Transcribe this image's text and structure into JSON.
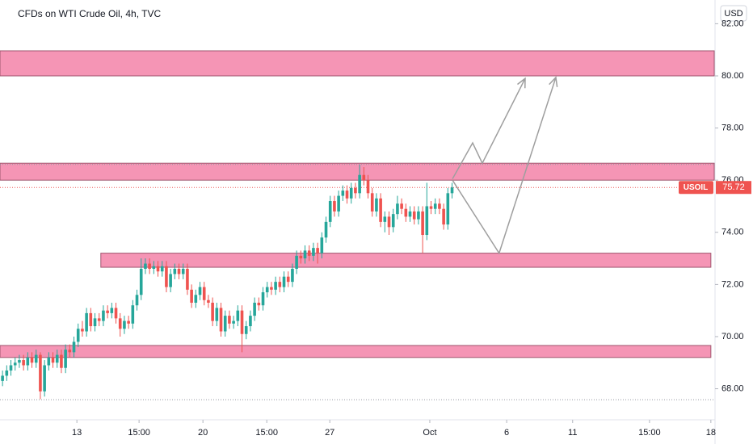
{
  "chart_data": {
    "type": "candlestick",
    "title": "CFDs on WTI Crude Oil, 4h, TVC",
    "currency": "USD",
    "up_color": "#26a69a",
    "down_color": "#ef5350",
    "zone_color": "#f48fb1",
    "xlim": [
      -0.6,
      169.4
    ],
    "ylim": [
      66.81,
      82.91
    ],
    "xticks": [
      {
        "value": 17.7,
        "label": "13"
      },
      {
        "value": 32.5,
        "label": "15:00"
      },
      {
        "value": 47.7,
        "label": "20"
      },
      {
        "value": 62.9,
        "label": "15:00"
      },
      {
        "value": 77.9,
        "label": "27"
      },
      {
        "value": 101.7,
        "label": "Oct"
      },
      {
        "value": 120,
        "label": "6"
      },
      {
        "value": 135.7,
        "label": "11"
      },
      {
        "value": 154,
        "label": "15:00"
      },
      {
        "value": 168.6,
        "label": "18"
      }
    ],
    "yticks": [
      {
        "value": 68,
        "label": "68.00"
      },
      {
        "value": 70,
        "label": "70.00"
      },
      {
        "value": 72,
        "label": "72.00"
      },
      {
        "value": 74,
        "label": "74.00"
      },
      {
        "value": 76,
        "label": "76.00"
      },
      {
        "value": 78,
        "label": "78.00"
      },
      {
        "value": 80,
        "label": "80.00"
      },
      {
        "value": 82,
        "label": "82.00"
      }
    ],
    "open": [
      68.3,
      68.5,
      68.7,
      68.9,
      69.0,
      69.1,
      68.9,
      69.2,
      69.0,
      69.3,
      67.9,
      68.9,
      69.2,
      69.0,
      69.3,
      68.8,
      69.5,
      69.4,
      69.8,
      70.3,
      70.2,
      70.9,
      70.4,
      70.7,
      70.6,
      71.0,
      70.9,
      71.1,
      70.7,
      70.3,
      70.6,
      70.5,
      71.2,
      71.6,
      72.6,
      72.8,
      72.6,
      72.7,
      72.5,
      72.7,
      71.9,
      72.4,
      72.6,
      72.4,
      72.6,
      71.8,
      71.3,
      71.6,
      71.9,
      71.4,
      71.3,
      70.6,
      71.1,
      70.2,
      70.8,
      70.5,
      70.6,
      71.0,
      70.1,
      70.4,
      70.8,
      71.3,
      71.2,
      71.7,
      71.9,
      71.8,
      72.1,
      71.9,
      72.3,
      72.1,
      72.6,
      73.1,
      73.0,
      73.3,
      73.1,
      73.4,
      73.2,
      73.8,
      74.4,
      75.2,
      74.8,
      75.4,
      75.6,
      75.3,
      75.7,
      75.5,
      76.2,
      76.0,
      75.5,
      74.8,
      75.3,
      74.4,
      74.6,
      74.2,
      74.7,
      75.1,
      74.9,
      74.6,
      74.8,
      74.5,
      74.8,
      73.9,
      75.0,
      74.9,
      75.1,
      74.9,
      74.3,
      75.5
    ],
    "high": [
      68.7,
      68.9,
      69.1,
      69.2,
      69.3,
      69.3,
      69.4,
      69.4,
      69.5,
      69.4,
      69.1,
      69.4,
      69.4,
      69.5,
      69.5,
      69.7,
      69.7,
      70.0,
      70.5,
      70.6,
      71.1,
      71.1,
      70.9,
      70.9,
      71.2,
      71.2,
      71.3,
      71.3,
      70.9,
      70.8,
      70.8,
      71.4,
      71.8,
      73.0,
      73.0,
      73.0,
      72.9,
      72.9,
      72.9,
      72.9,
      72.6,
      72.8,
      72.8,
      72.8,
      72.8,
      72.0,
      71.8,
      72.1,
      72.1,
      71.6,
      71.5,
      71.3,
      71.3,
      71.0,
      71.0,
      70.8,
      71.2,
      71.2,
      70.6,
      71.0,
      71.5,
      71.5,
      71.9,
      72.1,
      72.1,
      72.3,
      72.3,
      72.5,
      72.5,
      72.8,
      73.3,
      73.3,
      73.5,
      73.5,
      73.6,
      73.6,
      74.0,
      74.6,
      75.4,
      75.4,
      75.6,
      75.8,
      75.8,
      75.9,
      75.9,
      76.6,
      76.5,
      76.2,
      75.7,
      75.5,
      75.5,
      74.8,
      74.8,
      74.9,
      75.4,
      75.3,
      75.1,
      75.0,
      75.0,
      75.0,
      75.0,
      75.9,
      75.2,
      75.3,
      75.3,
      75.1,
      75.7,
      75.9
    ],
    "low": [
      68.1,
      68.3,
      68.5,
      68.7,
      68.8,
      68.7,
      68.7,
      68.8,
      68.8,
      67.6,
      67.7,
      68.7,
      68.8,
      68.8,
      68.6,
      68.6,
      69.2,
      69.2,
      69.6,
      70.0,
      70.0,
      70.2,
      70.2,
      70.4,
      70.4,
      70.7,
      70.7,
      70.5,
      70.0,
      70.1,
      70.3,
      70.3,
      71.0,
      71.4,
      72.4,
      72.4,
      72.4,
      72.3,
      72.3,
      71.7,
      71.7,
      72.2,
      72.2,
      72.2,
      71.6,
      71.1,
      71.1,
      71.4,
      71.2,
      71.1,
      70.4,
      70.4,
      70.0,
      70.0,
      70.3,
      70.3,
      70.4,
      69.4,
      69.9,
      70.2,
      70.6,
      71.0,
      71.0,
      71.5,
      71.6,
      71.6,
      71.7,
      71.7,
      71.9,
      71.9,
      72.4,
      72.8,
      72.8,
      72.9,
      72.9,
      72.8,
      73.0,
      73.6,
      74.2,
      74.6,
      74.6,
      75.2,
      75.1,
      75.1,
      75.3,
      75.3,
      75.8,
      75.3,
      74.6,
      74.6,
      74.2,
      74.0,
      73.9,
      74.0,
      74.5,
      74.7,
      74.4,
      74.4,
      74.3,
      74.3,
      73.2,
      73.7,
      74.7,
      74.7,
      74.7,
      74.1,
      74.1,
      75.3
    ],
    "close": [
      68.5,
      68.7,
      68.9,
      69.0,
      69.1,
      68.9,
      69.2,
      69.0,
      69.3,
      67.9,
      68.9,
      69.2,
      69.0,
      69.3,
      68.8,
      69.5,
      69.4,
      69.8,
      70.3,
      70.2,
      70.9,
      70.4,
      70.7,
      70.6,
      71.0,
      70.9,
      71.1,
      70.7,
      70.3,
      70.6,
      70.5,
      71.2,
      71.6,
      72.6,
      72.8,
      72.6,
      72.7,
      72.5,
      72.7,
      71.9,
      72.4,
      72.6,
      72.4,
      72.6,
      71.8,
      71.3,
      71.6,
      71.9,
      71.4,
      71.3,
      70.6,
      71.1,
      70.2,
      70.8,
      70.5,
      70.6,
      71.0,
      70.1,
      70.4,
      70.8,
      71.3,
      71.2,
      71.7,
      71.9,
      71.8,
      72.1,
      71.9,
      72.3,
      72.1,
      72.6,
      73.1,
      73.0,
      73.3,
      73.1,
      73.4,
      73.2,
      73.8,
      74.4,
      75.2,
      74.8,
      75.4,
      75.6,
      75.3,
      75.7,
      75.5,
      76.2,
      76.0,
      75.5,
      74.8,
      75.3,
      74.4,
      74.6,
      74.2,
      74.7,
      75.1,
      74.9,
      74.6,
      74.8,
      74.5,
      74.8,
      73.9,
      75.0,
      74.9,
      75.1,
      74.9,
      74.3,
      75.5,
      75.72
    ],
    "zones": [
      {
        "x": [
          -0.6,
          169.4
        ],
        "y": [
          80.0,
          80.96
        ]
      },
      {
        "x": [
          -0.6,
          169.4
        ],
        "y": [
          76.0,
          76.65
        ]
      },
      {
        "x": [
          23.4,
          168.6
        ],
        "y": [
          72.66,
          73.2
        ]
      },
      {
        "x": [
          -0.6,
          168.6
        ],
        "y": [
          69.2,
          69.66
        ]
      }
    ],
    "levels": [
      76.6,
      67.58
    ],
    "arrows": [
      {
        "points": [
          [
            107.1,
            76.05
          ],
          [
            111.9,
            77.43
          ],
          [
            114.2,
            76.65
          ],
          [
            124.4,
            79.9
          ]
        ]
      },
      {
        "points": [
          [
            107.1,
            76.0
          ],
          [
            118.2,
            73.2
          ],
          [
            131.7,
            79.94
          ]
        ]
      }
    ],
    "last_price": {
      "symbol": "USOIL",
      "value": 75.72
    }
  }
}
